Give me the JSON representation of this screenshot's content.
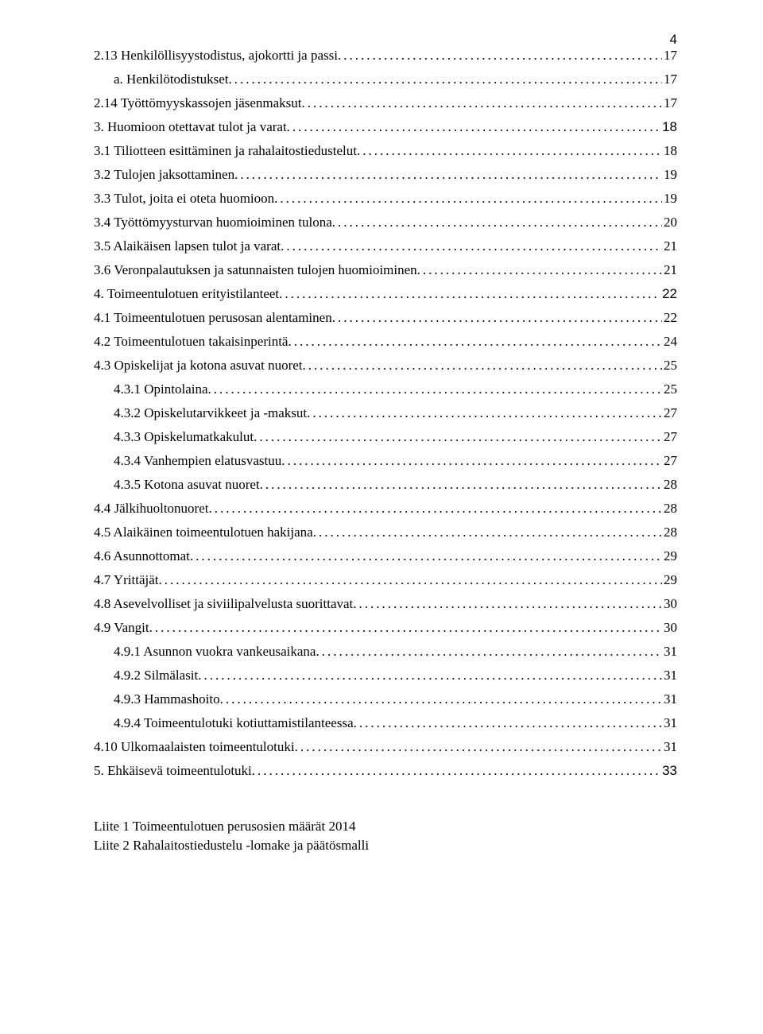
{
  "page_number": "4",
  "toc": [
    {
      "lvl": "a",
      "title": "2.13 Henkilöllisyystodistus, ajokortti ja passi",
      "page": "17",
      "style": "serif"
    },
    {
      "lvl": "b",
      "title": "a. Henkilötodistukset",
      "page": "17",
      "style": "serif"
    },
    {
      "lvl": "a",
      "title": "2.14 Työttömyyskassojen jäsenmaksut",
      "page": "17",
      "style": "serif"
    },
    {
      "lvl": "a",
      "title": "3. Huomioon otettavat tulot ja varat",
      "page": "18",
      "style": "sans-heading"
    },
    {
      "lvl": "a",
      "title": "3.1 Tiliotteen esittäminen ja rahalaitostiedustelut",
      "page": "18",
      "style": "serif"
    },
    {
      "lvl": "a",
      "title": "3.2 Tulojen jaksottaminen",
      "page": "19",
      "style": "serif"
    },
    {
      "lvl": "a",
      "title": "3.3 Tulot, joita ei oteta huomioon",
      "page": "19",
      "style": "serif"
    },
    {
      "lvl": "a",
      "title": "3.4 Työttömyysturvan huomioiminen tulona",
      "page": "20",
      "style": "serif"
    },
    {
      "lvl": "a",
      "title": "3.5 Alaikäisen lapsen tulot ja varat",
      "page": "21",
      "style": "serif"
    },
    {
      "lvl": "a",
      "title": "3.6 Veronpalautuksen ja satunnaisten tulojen huomioiminen",
      "page": "21",
      "style": "serif"
    },
    {
      "lvl": "a",
      "title": "4. Toimeentulotuen erityistilanteet",
      "page": "22",
      "style": "sans-heading"
    },
    {
      "lvl": "a",
      "title": "4.1 Toimeentulotuen perusosan alentaminen",
      "page": "22",
      "style": "serif"
    },
    {
      "lvl": "a",
      "title": "4.2 Toimeentulotuen takaisinperintä",
      "page": "24",
      "style": "serif"
    },
    {
      "lvl": "a",
      "title": "4.3 Opiskelijat ja kotona asuvat nuoret",
      "page": "25",
      "style": "serif"
    },
    {
      "lvl": "b",
      "title": "4.3.1 Opintolaina",
      "page": "25",
      "style": "serif"
    },
    {
      "lvl": "b",
      "title": "4.3.2 Opiskelutarvikkeet ja -maksut",
      "page": "27",
      "style": "serif"
    },
    {
      "lvl": "b",
      "title": "4.3.3 Opiskelumatkakulut",
      "page": "27",
      "style": "serif"
    },
    {
      "lvl": "b",
      "title": "4.3.4 Vanhempien elatusvastuu",
      "page": "27",
      "style": "serif"
    },
    {
      "lvl": "b",
      "title": "4.3.5 Kotona asuvat nuoret",
      "page": "28",
      "style": "serif"
    },
    {
      "lvl": "a",
      "title": "4.4 Jälkihuoltonuoret",
      "page": "28",
      "style": "serif"
    },
    {
      "lvl": "a",
      "title": "4.5 Alaikäinen toimeentulotuen hakijana",
      "page": "28",
      "style": "serif"
    },
    {
      "lvl": "a",
      "title": "4.6 Asunnottomat",
      "page": "29",
      "style": "serif"
    },
    {
      "lvl": "a",
      "title": "4.7 Yrittäjät",
      "page": "29",
      "style": "serif"
    },
    {
      "lvl": "a",
      "title": "4.8 Asevelvolliset ja siviilipalvelusta suorittavat",
      "page": "30",
      "style": "serif"
    },
    {
      "lvl": "a",
      "title": "4.9 Vangit",
      "page": "30",
      "style": "serif"
    },
    {
      "lvl": "b",
      "title": "4.9.1 Asunnon vuokra vankeusaikana",
      "page": "31",
      "style": "serif"
    },
    {
      "lvl": "b",
      "title": "4.9.2 Silmälasit",
      "page": "31",
      "style": "serif"
    },
    {
      "lvl": "b",
      "title": "4.9.3 Hammashoito",
      "page": "31",
      "style": "serif"
    },
    {
      "lvl": "b",
      "title": "4.9.4 Toimeentulotuki kotiuttamistilanteessa",
      "page": "31",
      "style": "serif"
    },
    {
      "lvl": "a",
      "title": "4.10 Ulkomaalaisten toimeentulotuki",
      "page": "31",
      "style": "serif"
    },
    {
      "lvl": "a",
      "title": "5. Ehkäisevä toimeentulotuki",
      "page": "33",
      "style": "sans-heading"
    }
  ],
  "appendices": [
    "Liite 1 Toimeentulotuen perusosien määrät 2014",
    "Liite 2 Rahalaitostiedustelu -lomake ja päätösmalli"
  ]
}
